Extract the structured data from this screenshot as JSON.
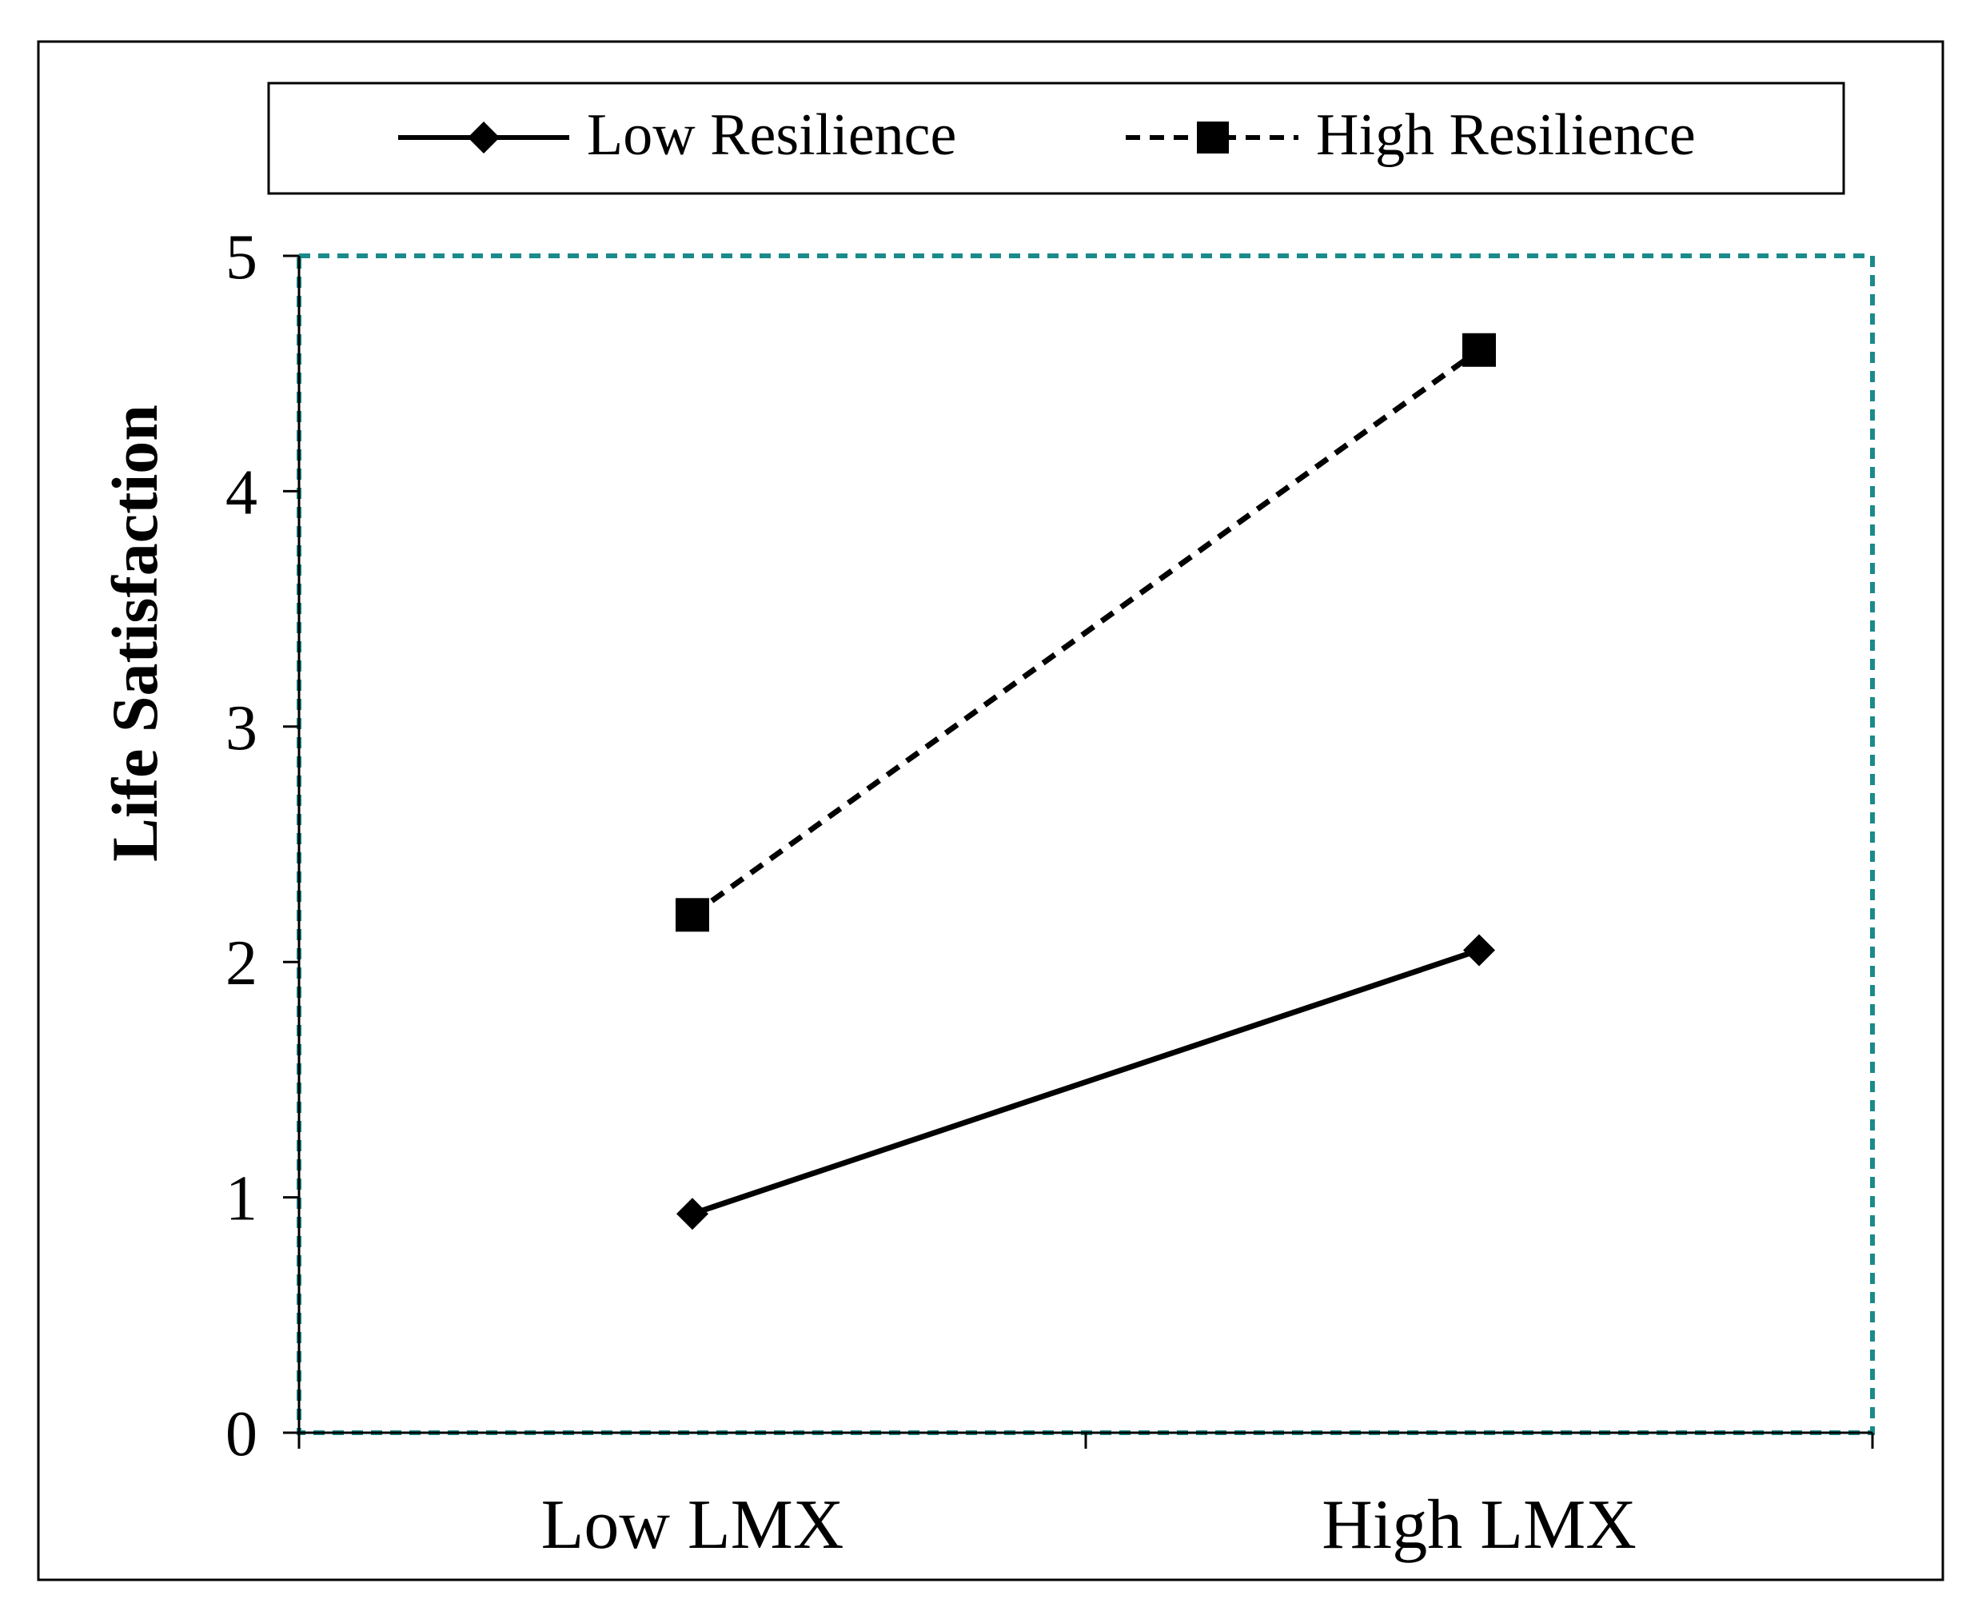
{
  "chart_data": {
    "type": "line",
    "title": "",
    "xlabel": "",
    "ylabel": "Life Satisfaction",
    "categories": [
      "Low LMX",
      "High LMX"
    ],
    "ylim": [
      0,
      5
    ],
    "yticks": [
      "0",
      "1",
      "2",
      "3",
      "4",
      "5"
    ],
    "grid": false,
    "legend_position": "top",
    "series": [
      {
        "name": "Low Resilience",
        "values": [
          0.93,
          2.05
        ],
        "line_style": "solid",
        "marker": "diamond",
        "color": "#000000"
      },
      {
        "name": "High Resilience",
        "values": [
          2.2,
          4.6
        ],
        "line_style": "dashed",
        "marker": "square",
        "color": "#000000"
      }
    ],
    "plot_border_color": "#1a8a8a"
  }
}
